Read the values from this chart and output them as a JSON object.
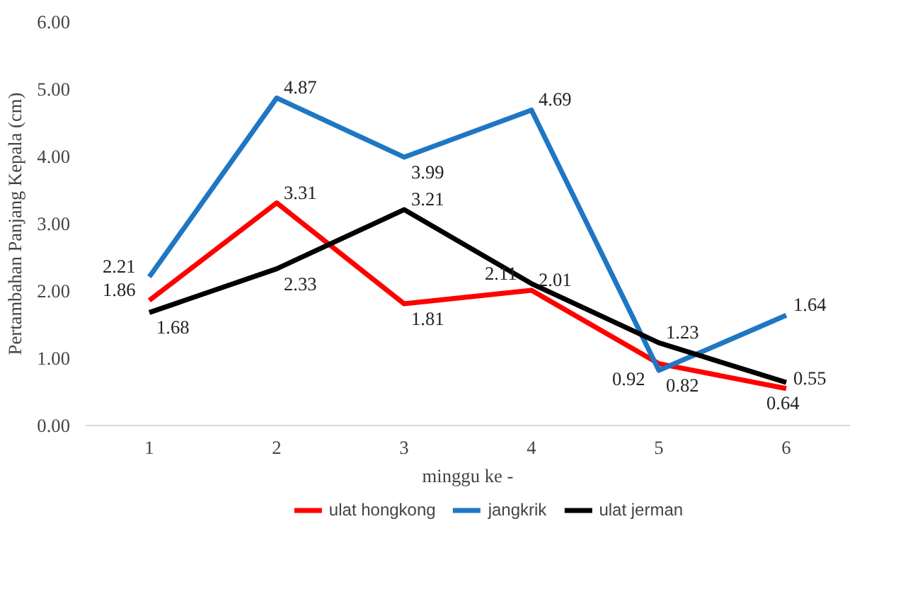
{
  "chart_data": {
    "type": "line",
    "xlabel": "minggu ke -",
    "ylabel": "Pertambahan Panjang Kepala (cm)",
    "categories": [
      "1",
      "2",
      "3",
      "4",
      "5",
      "6"
    ],
    "series": [
      {
        "name": "ulat hongkong",
        "color": "#ff0000",
        "values": [
          1.86,
          3.31,
          1.81,
          2.01,
          0.92,
          0.55
        ]
      },
      {
        "name": "jangkrik",
        "color": "#1f77c4",
        "values": [
          2.21,
          4.87,
          3.99,
          4.69,
          0.82,
          1.64
        ]
      },
      {
        "name": "ulat jerman",
        "color": "#000000",
        "values": [
          1.68,
          2.33,
          3.21,
          2.11,
          1.23,
          0.64
        ]
      }
    ],
    "ylim": [
      0,
      6
    ],
    "yticks": [
      {
        "value": 0,
        "label": "0.00"
      },
      {
        "value": 1,
        "label": "1.00"
      },
      {
        "value": 2,
        "label": "2.00"
      },
      {
        "value": 3,
        "label": "3.00"
      },
      {
        "value": 4,
        "label": "4.00"
      },
      {
        "value": 5,
        "label": "5.00"
      },
      {
        "value": 6,
        "label": "6.00"
      }
    ],
    "grid": false,
    "legend": "bottom",
    "data_labels": true,
    "marker": "none",
    "line_style": "solid"
  }
}
